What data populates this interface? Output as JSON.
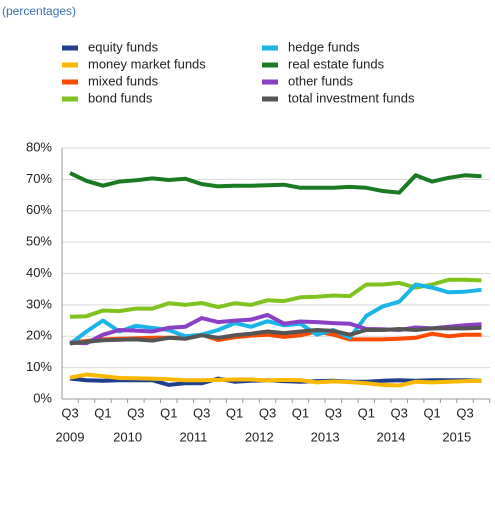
{
  "chart_data": {
    "type": "line",
    "subtitle": "(percentages)",
    "categories": [
      "Q3",
      null,
      "Q1",
      null,
      "Q3",
      null,
      "Q1",
      null,
      "Q3",
      null,
      "Q1",
      null,
      "Q3",
      null,
      "Q1",
      null,
      "Q3",
      null,
      "Q1",
      null,
      "Q3",
      null,
      "Q1",
      null,
      "Q3",
      null
    ],
    "years": [
      "2009",
      "2010",
      "2011",
      "2012",
      "2013",
      "2014",
      "2015"
    ],
    "ylim": [
      0,
      80
    ],
    "yticks": [
      {
        "value": 0,
        "label": "0%"
      },
      {
        "value": 10,
        "label": "10%"
      },
      {
        "value": 20,
        "label": "20%"
      },
      {
        "value": 30,
        "label": "30%"
      },
      {
        "value": 40,
        "label": "40%"
      },
      {
        "value": 50,
        "label": "50%"
      },
      {
        "value": 60,
        "label": "60%"
      },
      {
        "value": 70,
        "label": "70%"
      },
      {
        "value": 80,
        "label": "80%"
      }
    ],
    "grid": true,
    "series": [
      {
        "name": "equity funds",
        "color": "#1f3f8f",
        "values": [
          6.5,
          6,
          5.8,
          6,
          6,
          6,
          4.5,
          5,
          5,
          6.5,
          5.5,
          5.8,
          6,
          5.7,
          5.5,
          5.7,
          5.8,
          5.5,
          5.5,
          5.8,
          6,
          5.8,
          6,
          6,
          6,
          5.8
        ]
      },
      {
        "name": "money market funds",
        "color": "#fbb800",
        "values": [
          6.8,
          7.8,
          7.3,
          6.7,
          6.6,
          6.5,
          6.3,
          6,
          6,
          6.1,
          6.2,
          6.2,
          5.9,
          6.1,
          6,
          5.3,
          5.6,
          5.4,
          5,
          4.5,
          4.3,
          5.5,
          5.3,
          5.5,
          5.7,
          5.8
        ]
      },
      {
        "name": "mixed funds",
        "color": "#ff4a00",
        "values": [
          18,
          18.5,
          19,
          19.2,
          19.3,
          19.5,
          19.5,
          19.5,
          20.5,
          18.8,
          19.7,
          20.2,
          20.5,
          19.8,
          20.3,
          21.5,
          20.5,
          19,
          19,
          19,
          19.2,
          19.5,
          20.8,
          20,
          20.5,
          20.5
        ]
      },
      {
        "name": "bond funds",
        "color": "#7fc41e",
        "values": [
          26.2,
          26.4,
          28.2,
          28,
          28.8,
          28.8,
          30.5,
          30,
          30.6,
          29.3,
          30.5,
          30,
          31.5,
          31.2,
          32.4,
          32.6,
          33,
          32.8,
          36.5,
          36.5,
          37,
          35.5,
          36.5,
          38,
          38,
          37.8
        ]
      },
      {
        "name": "hedge funds",
        "color": "#19b4e8",
        "values": [
          17.5,
          21.5,
          25,
          21.5,
          23.3,
          22.7,
          22,
          20,
          20.5,
          22,
          24.2,
          23,
          24.8,
          23.5,
          24,
          20.5,
          22,
          19.5,
          26.5,
          29.5,
          31,
          36.5,
          35.5,
          34,
          34.2,
          34.8
        ]
      },
      {
        "name": "real estate funds",
        "color": "#1a7a22",
        "values": [
          72,
          69.5,
          68,
          69.3,
          69.7,
          70.3,
          69.8,
          70.2,
          68.5,
          67.8,
          68,
          68,
          68.1,
          68.3,
          67.3,
          67.3,
          67.3,
          67.6,
          67.3,
          66.3,
          65.8,
          71.3,
          69.3,
          70.5,
          71.3,
          71
        ]
      },
      {
        "name": "other funds",
        "color": "#8b3fc4",
        "values": [
          18,
          17.8,
          20.5,
          22,
          21.8,
          21.5,
          22.7,
          23,
          25.8,
          24.5,
          25,
          25.3,
          26.8,
          24,
          24.7,
          24.5,
          24.2,
          24,
          22.3,
          22.2,
          22,
          22.8,
          22.5,
          23,
          23.5,
          23.8
        ]
      },
      {
        "name": "total investment funds",
        "color": "#555555",
        "values": [
          17.8,
          18.2,
          18.7,
          18.9,
          19,
          18.6,
          19.5,
          19.2,
          20.3,
          19.5,
          20.3,
          20.8,
          21.5,
          21,
          21.5,
          22,
          21.7,
          20.5,
          22,
          22,
          22.3,
          22,
          22.5,
          22.5,
          22.5,
          22.7
        ]
      }
    ]
  }
}
